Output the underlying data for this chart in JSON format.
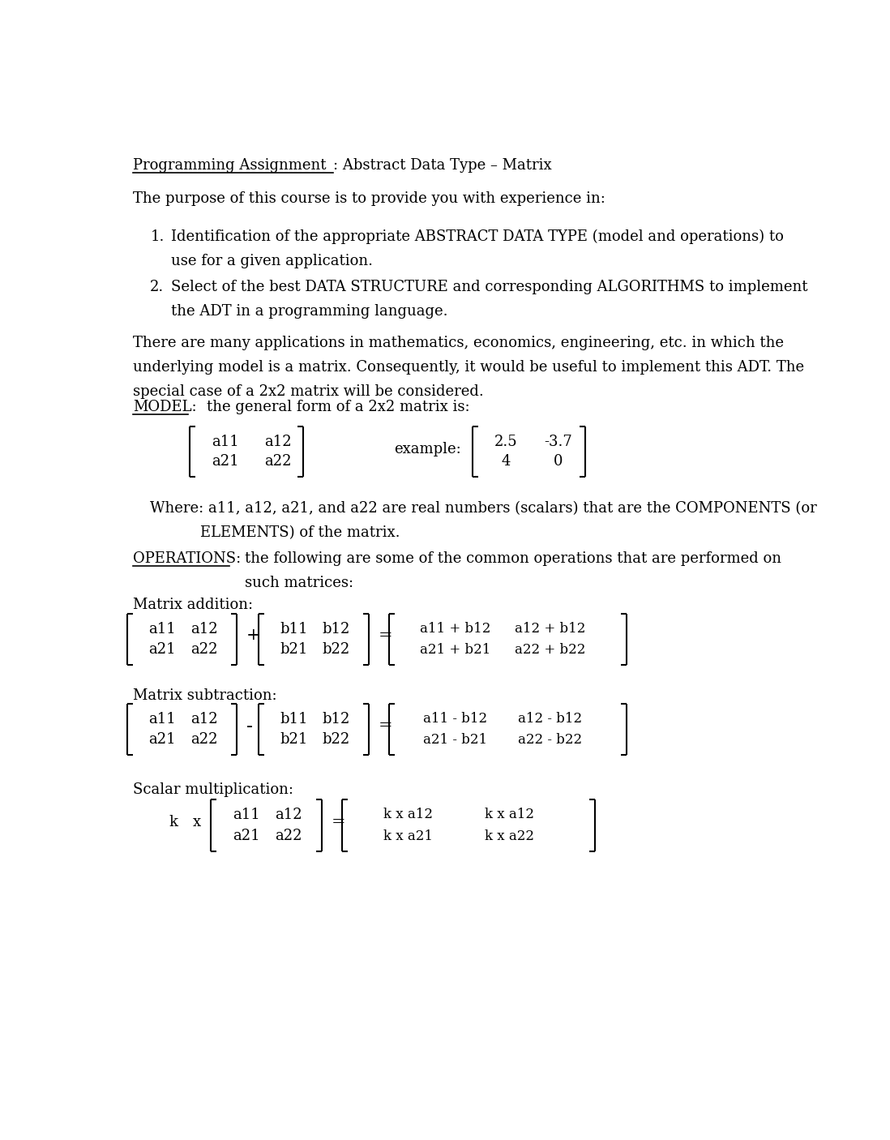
{
  "bg_color": "#ffffff",
  "font_family": "serif",
  "title_underlined": "Programming Assignment",
  "title_rest": ": Abstract Data Type – Matrix",
  "purpose_text": "The purpose of this course is to provide you with experience in:",
  "item1_line1": "Identification of the appropriate ABSTRACT DATA TYPE (model and operations) to",
  "item1_line2": "use for a given application.",
  "item2_line1": "Select of the best DATA STRUCTURE and corresponding ALGORITHMS to implement",
  "item2_line2": "the ADT in a programming language.",
  "para_line1": "There are many applications in mathematics, economics, engineering, etc. in which the",
  "para_line2": "underlying model is a matrix. Consequently, it would be useful to implement this ADT. The",
  "para_line3": "special case of a 2x2 matrix will be considered.",
  "model_label": "MODEL:",
  "model_text": "the general form of a 2x2 matrix is:",
  "example_label": "example:",
  "where_line1": "Where: a11, a12, a21, and a22 are real numbers (scalars) that are the COMPONENTS (or",
  "where_line2": "ELEMENTS) of the matrix.",
  "ops_label": "OPERATIONS:",
  "ops_text_line1": "the following are some of the common operations that are performed on",
  "ops_text_line2": "such matrices:",
  "addition_label": "Matrix addition:",
  "subtraction_label": "Matrix subtraction:",
  "scalar_label": "Scalar multiplication:"
}
